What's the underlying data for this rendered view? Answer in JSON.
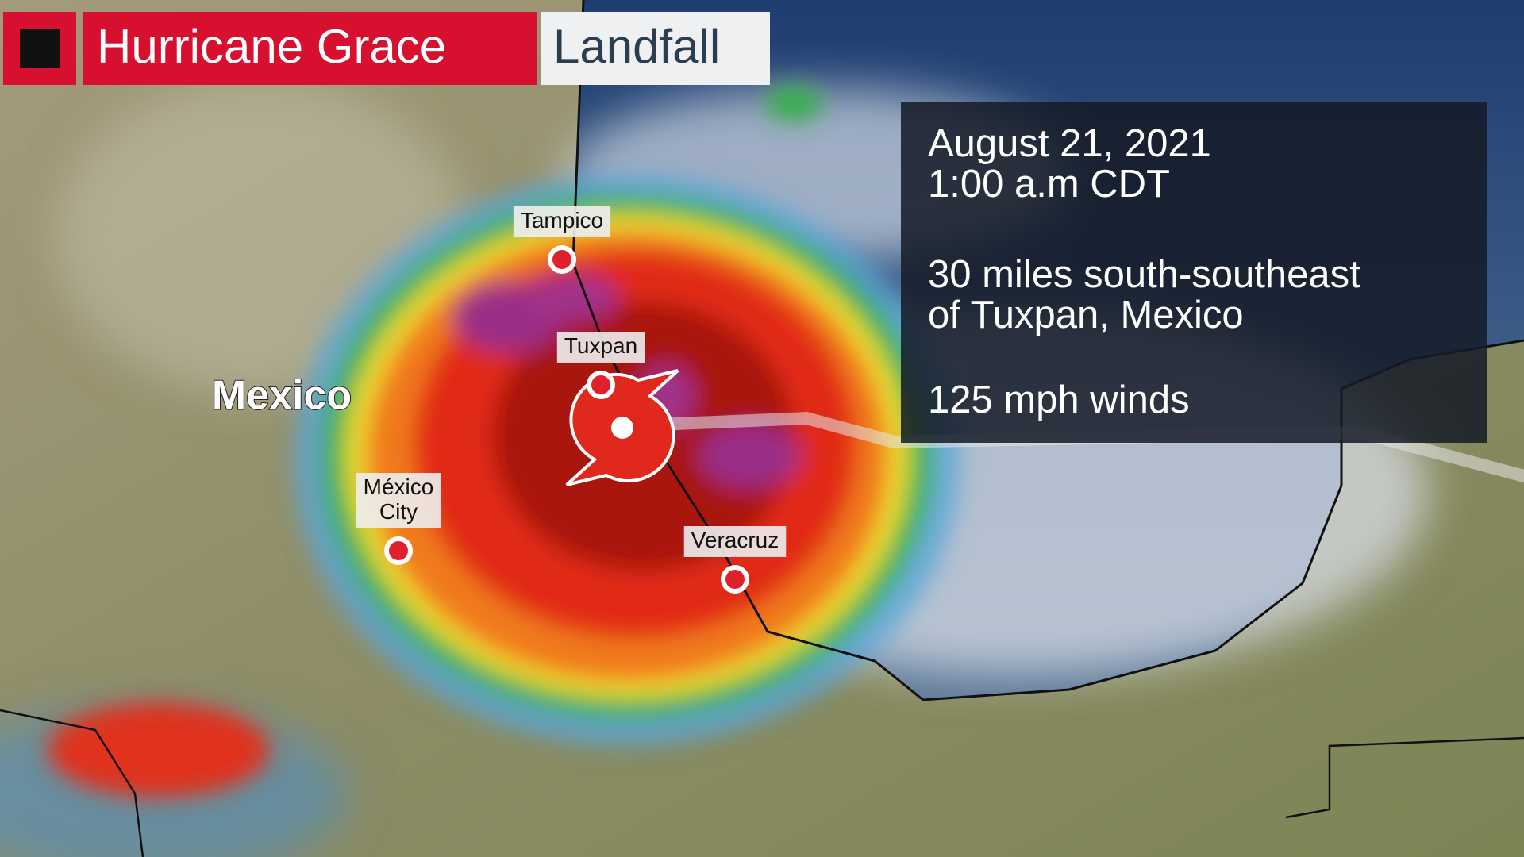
{
  "header": {
    "title": "Hurricane Grace",
    "tag": "Landfall"
  },
  "info": {
    "date": "August 21, 2021",
    "time": "1:00 a.m CDT",
    "location_line1": "30 miles south-southeast",
    "location_line2": "of Tuxpan, Mexico",
    "winds": "125 mph winds"
  },
  "map": {
    "country_label": "Mexico",
    "cities": [
      {
        "lines": [
          "Tampico"
        ]
      },
      {
        "lines": [
          "Tuxpan"
        ]
      },
      {
        "lines": [
          "México",
          "City"
        ]
      },
      {
        "lines": [
          "Veracruz"
        ]
      }
    ]
  }
}
